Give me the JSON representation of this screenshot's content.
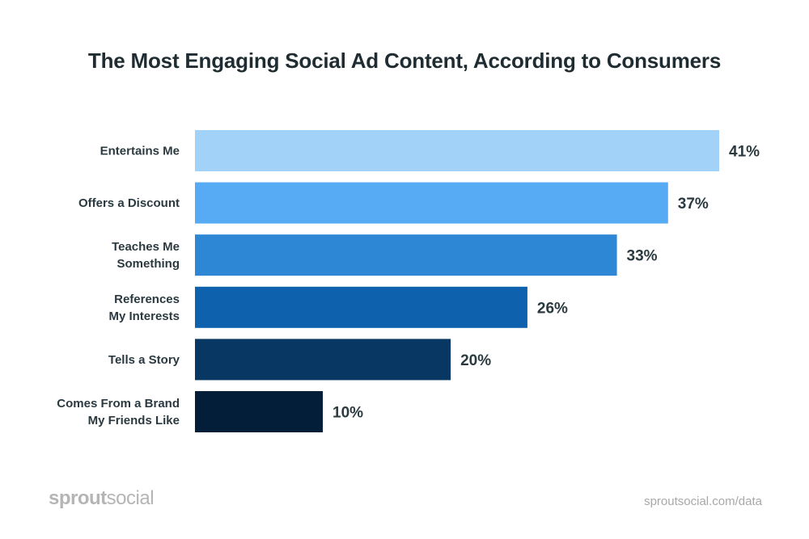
{
  "chart_data": {
    "type": "bar",
    "orientation": "horizontal",
    "title": "The Most Engaging Social Ad Content, According to Consumers",
    "categories": [
      [
        "Entertains Me"
      ],
      [
        "Offers a Discount"
      ],
      [
        "Teaches Me",
        "Something"
      ],
      [
        "References",
        "My Interests"
      ],
      [
        "Tells a Story"
      ],
      [
        "Comes From a Brand",
        "My Friends Like"
      ]
    ],
    "values": [
      41,
      37,
      33,
      26,
      20,
      10
    ],
    "value_labels": [
      "41%",
      "37%",
      "33%",
      "26%",
      "20%",
      "10%"
    ],
    "colors": [
      "#A2D2F7",
      "#56ABF4",
      "#2D87D5",
      "#0D61AD",
      "#093763",
      "#021E38"
    ],
    "unit": "%",
    "xlim": [
      0,
      41
    ],
    "grid": false,
    "axes_visible": false
  },
  "footer": {
    "logo_bold": "sprout",
    "logo_light": "social",
    "source": "sproutsocial.com/data"
  }
}
